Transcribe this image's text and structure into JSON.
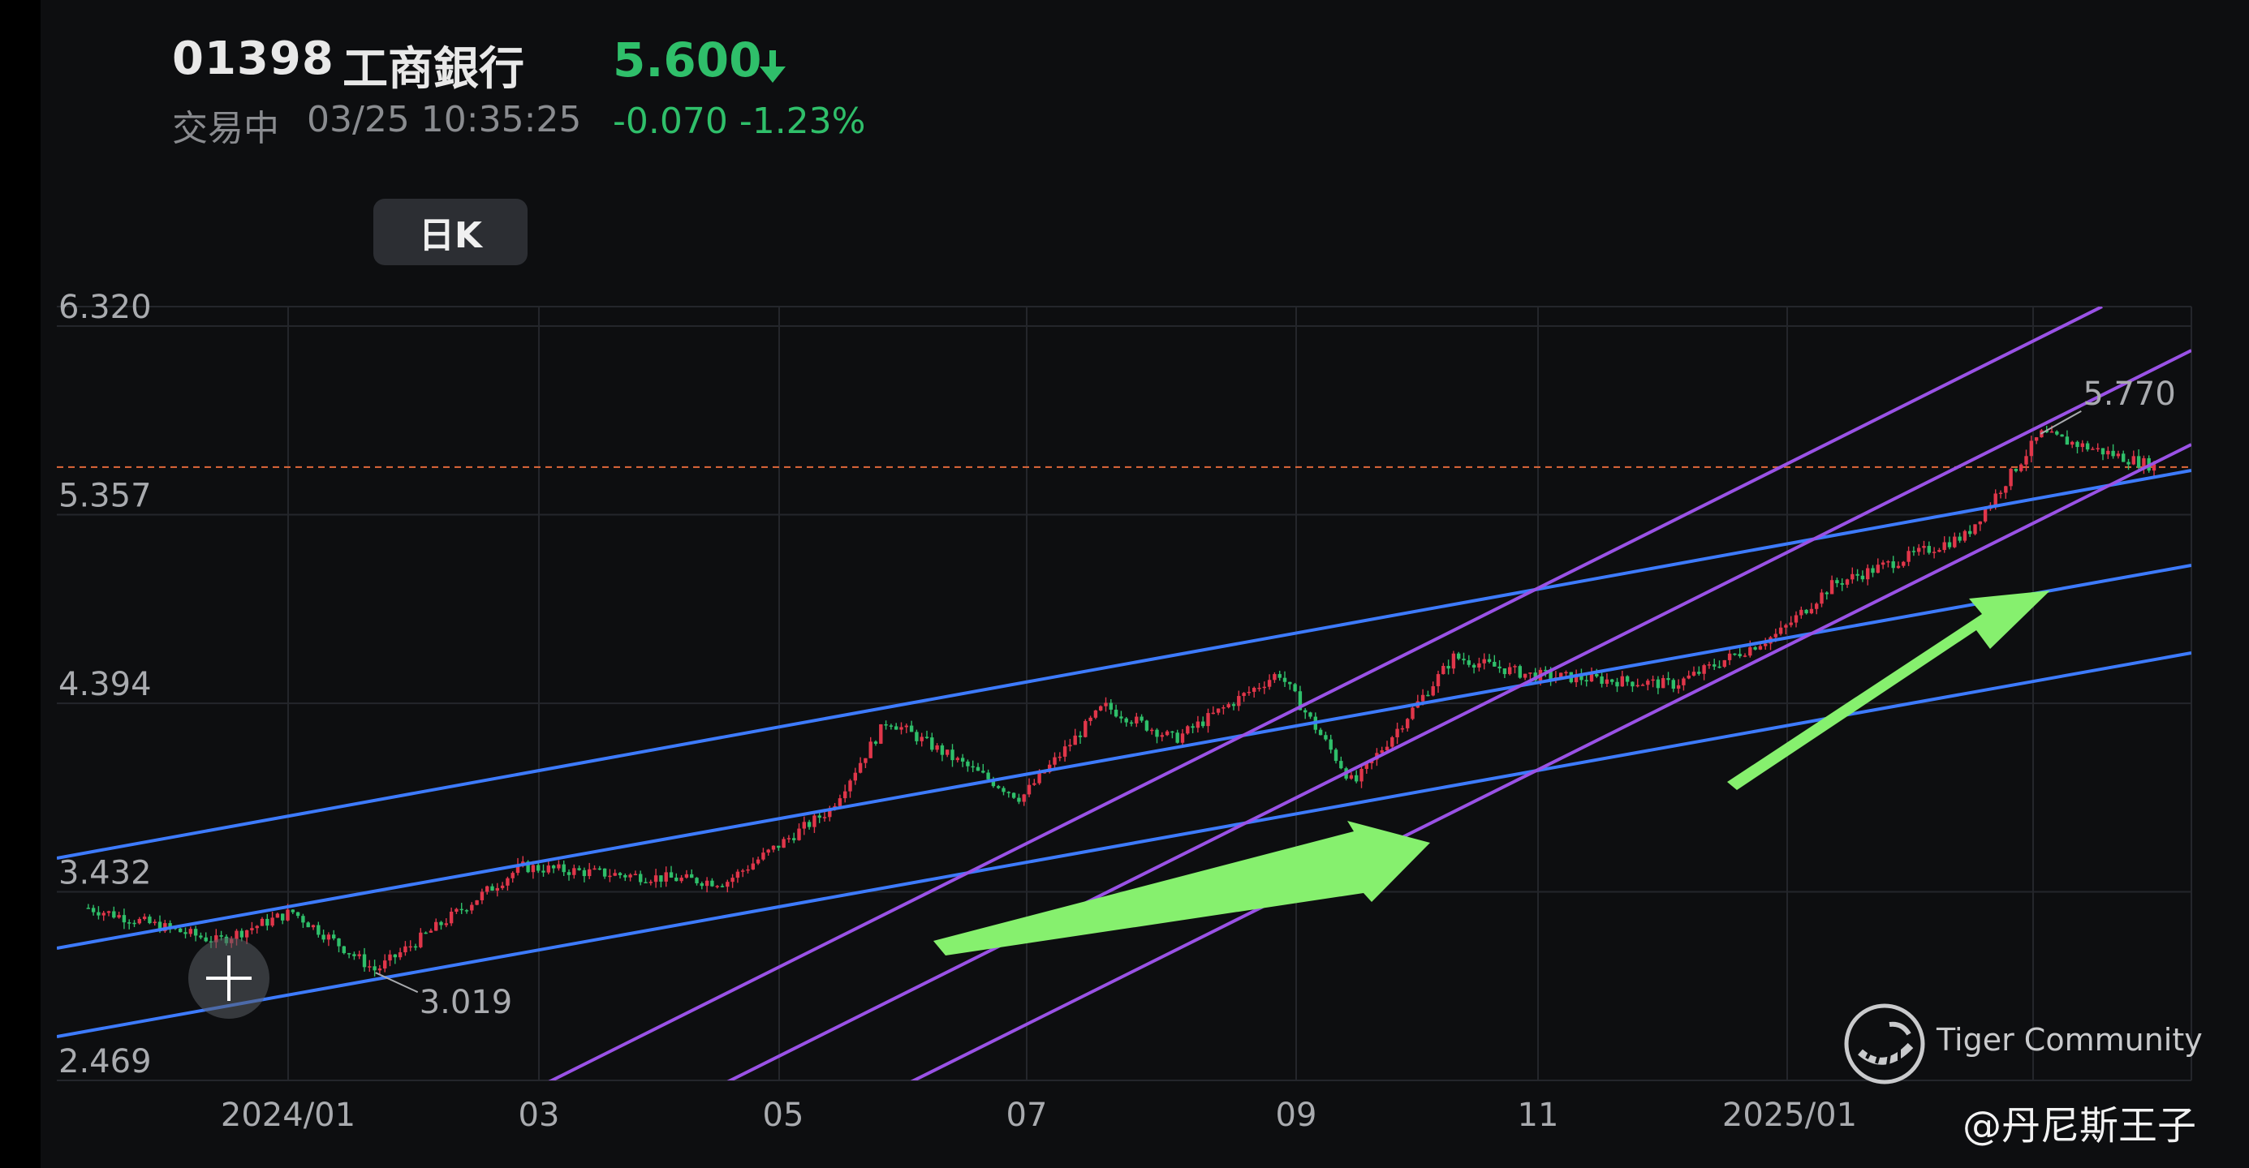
{
  "header": {
    "code": "01398",
    "name": "工商銀行",
    "price": "5.600",
    "status": "交易中",
    "time": "03/25 10:35:25",
    "change": "-0.070 -1.23%",
    "price_color": "#2fbf6a",
    "direction_icon": "arrow-down-icon"
  },
  "tab": {
    "label": "日K"
  },
  "chart_data": {
    "type": "candlestick",
    "y_ticks": [
      "6.320",
      "5.357",
      "4.394",
      "3.432",
      "2.469"
    ],
    "y_tick_values": [
      6.32,
      5.357,
      4.394,
      3.432,
      2.469
    ],
    "ylim": [
      2.469,
      6.32
    ],
    "x_ticks": [
      "2024/01",
      "03",
      "05",
      "07",
      "09",
      "11",
      "2025/01"
    ],
    "annotations": {
      "high": "5.770",
      "low": "3.019"
    },
    "current_price_line": 5.6,
    "approx_series": {
      "dates": [
        "2023-11-14",
        "2023-12-15",
        "2024-01-02",
        "2024-01-22",
        "2024-02-26",
        "2024-03-20",
        "2024-04-15",
        "2024-05-10",
        "2024-05-24",
        "2024-06-25",
        "2024-07-15",
        "2024-08-01",
        "2024-08-26",
        "2024-09-13",
        "2024-10-07",
        "2024-10-25",
        "2024-11-29",
        "2024-12-24",
        "2025-01-06",
        "2025-02-07",
        "2025-02-25",
        "2025-03-25"
      ],
      "close": [
        3.35,
        3.18,
        3.33,
        3.03,
        3.56,
        3.52,
        3.48,
        3.85,
        4.31,
        3.91,
        4.38,
        4.21,
        4.55,
        3.98,
        4.63,
        4.54,
        4.49,
        4.75,
        5.0,
        5.25,
        5.77,
        5.6
      ]
    },
    "colors": {
      "up": "#e0364a",
      "down": "#2fbf6a",
      "channel_blue": "#3d7bff",
      "channel_purple": "#9a52e6",
      "arrow": "#86f06e",
      "price_line": "#e0683a"
    },
    "grid": true
  },
  "watermark": {
    "text": "Tiger Community",
    "author": "@丹尼斯王子"
  }
}
